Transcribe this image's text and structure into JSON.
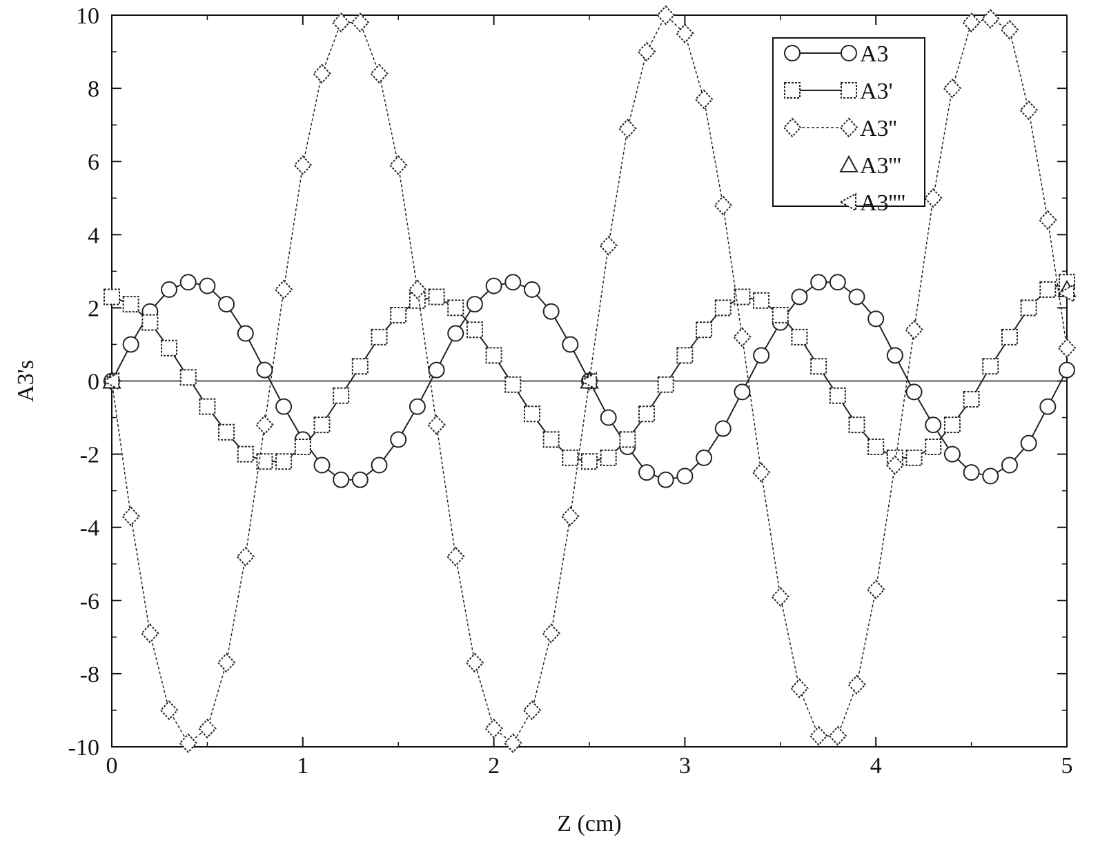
{
  "chart_data": {
    "type": "line",
    "title": "",
    "xlabel": "Z (cm)",
    "ylabel": "A3's",
    "xlim": [
      0,
      5
    ],
    "ylim": [
      -10,
      10
    ],
    "xticks": [
      "0",
      "1",
      "2",
      "3",
      "4",
      "5"
    ],
    "yticks": [
      "-10",
      "-8",
      "-6",
      "-4",
      "-2",
      "0",
      "2",
      "4",
      "6",
      "8",
      "10"
    ],
    "grid": false,
    "legend_position": "top-right",
    "x": [
      0,
      0.1,
      0.2,
      0.3,
      0.4,
      0.5,
      0.6,
      0.7,
      0.8,
      0.9,
      1.0,
      1.1,
      1.2,
      1.3,
      1.4,
      1.5,
      1.6,
      1.7,
      1.8,
      1.9,
      2.0,
      2.1,
      2.2,
      2.3,
      2.4,
      2.5,
      2.6,
      2.7,
      2.8,
      2.9,
      3.0,
      3.1,
      3.2,
      3.3,
      3.4,
      3.5,
      3.6,
      3.7,
      3.8,
      3.9,
      4.0,
      4.1,
      4.2,
      4.3,
      4.4,
      4.5,
      4.6,
      4.7,
      4.8,
      4.9,
      5.0
    ],
    "series": [
      {
        "name": "A3",
        "marker": "circle",
        "line": "solid",
        "values": [
          0,
          1.0,
          1.9,
          2.5,
          2.7,
          2.6,
          2.1,
          1.3,
          0.3,
          -0.7,
          -1.6,
          -2.3,
          -2.7,
          -2.7,
          -2.3,
          -1.6,
          -0.7,
          0.3,
          1.3,
          2.1,
          2.6,
          2.7,
          2.5,
          1.9,
          1.0,
          0,
          -1.0,
          -1.8,
          -2.5,
          -2.7,
          -2.6,
          -2.1,
          -1.3,
          -0.3,
          0.7,
          1.6,
          2.3,
          2.7,
          2.7,
          2.3,
          1.7,
          0.7,
          -0.3,
          -1.2,
          -2.0,
          -2.5,
          -2.6,
          -2.3,
          -1.7,
          -0.7,
          0.3
        ]
      },
      {
        "name": "A3'",
        "marker": "square",
        "line": "solid",
        "values": [
          2.3,
          2.1,
          1.6,
          0.9,
          0.1,
          -0.7,
          -1.4,
          -2.0,
          -2.2,
          -2.2,
          -1.8,
          -1.2,
          -0.4,
          0.4,
          1.2,
          1.8,
          2.2,
          2.3,
          2.0,
          1.4,
          0.7,
          -0.1,
          -0.9,
          -1.6,
          -2.1,
          -2.2,
          -2.1,
          -1.6,
          -0.9,
          -0.1,
          0.7,
          1.4,
          2.0,
          2.3,
          2.2,
          1.8,
          1.2,
          0.4,
          -0.4,
          -1.2,
          -1.8,
          -2.1,
          -2.1,
          -1.8,
          -1.2,
          -0.5,
          0.4,
          1.2,
          2.0,
          2.5,
          2.7
        ]
      },
      {
        "name": "A3''",
        "marker": "diamond",
        "line": "dotted",
        "values": [
          0,
          -3.7,
          -6.9,
          -9.0,
          -9.9,
          -9.5,
          -7.7,
          -4.8,
          -1.2,
          2.5,
          5.9,
          8.4,
          9.8,
          9.8,
          8.4,
          5.9,
          2.5,
          -1.2,
          -4.8,
          -7.7,
          -9.5,
          -9.9,
          -9.0,
          -6.9,
          -3.7,
          0,
          3.7,
          6.9,
          9.0,
          10.0,
          9.5,
          7.7,
          4.8,
          1.2,
          -2.5,
          -5.9,
          -8.4,
          -9.7,
          -9.7,
          -8.3,
          -5.7,
          -2.3,
          1.4,
          5.0,
          8.0,
          9.8,
          9.9,
          9.6,
          7.4,
          4.4,
          0.9
        ]
      },
      {
        "name": "A3'''",
        "marker": "triangle",
        "line": "none",
        "values": [
          0,
          null,
          null,
          null,
          null,
          null,
          null,
          null,
          null,
          null,
          null,
          null,
          null,
          null,
          null,
          null,
          null,
          null,
          null,
          null,
          null,
          null,
          null,
          null,
          null,
          0,
          null,
          null,
          null,
          null,
          null,
          null,
          null,
          null,
          null,
          null,
          null,
          null,
          null,
          null,
          null,
          null,
          null,
          null,
          null,
          null,
          null,
          null,
          null,
          null,
          2.5
        ]
      },
      {
        "name": "A3''''",
        "marker": "triangle-left",
        "line": "none",
        "values": [
          0,
          null,
          null,
          null,
          null,
          null,
          null,
          null,
          null,
          null,
          null,
          null,
          null,
          null,
          null,
          null,
          null,
          null,
          null,
          null,
          null,
          null,
          null,
          null,
          null,
          0,
          null,
          null,
          null,
          null,
          null,
          null,
          null,
          null,
          null,
          null,
          null,
          null,
          null,
          null,
          null,
          null,
          null,
          null,
          null,
          null,
          null,
          null,
          null,
          null,
          2.4
        ]
      }
    ]
  }
}
